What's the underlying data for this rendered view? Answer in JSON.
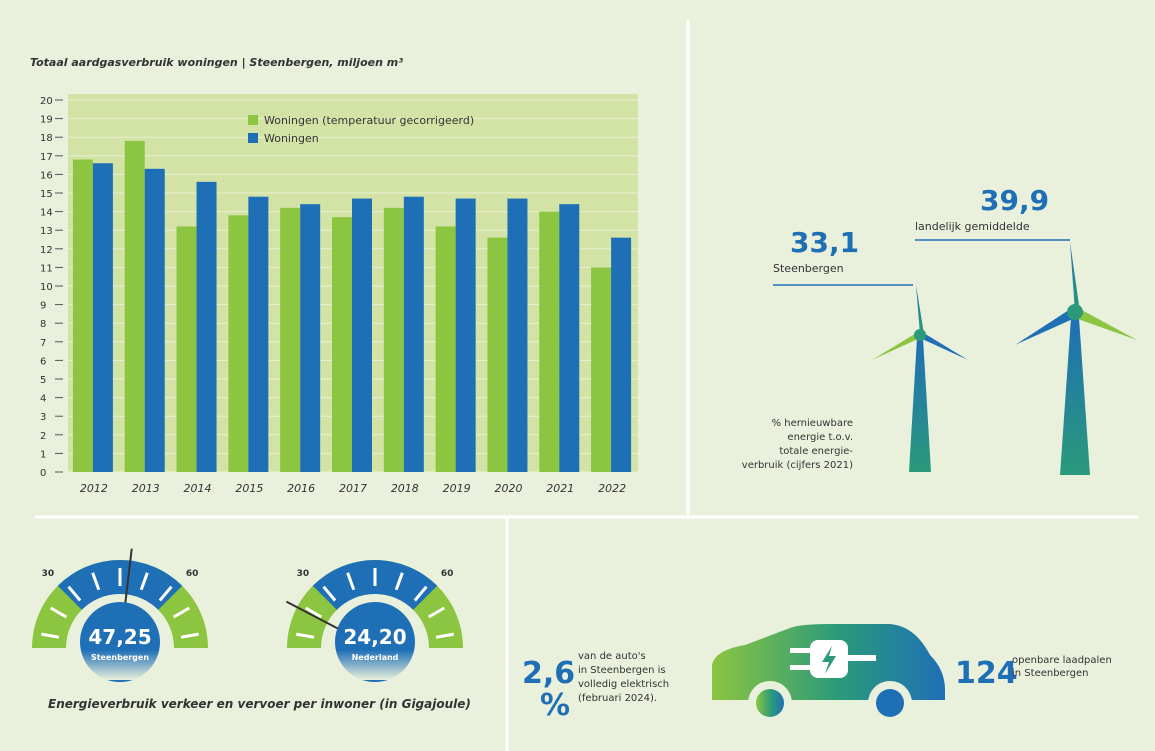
{
  "chart_data": {
    "type": "bar",
    "title": "Totaal aardgasverbruik woningen  |  Steenbergen, miljoen m³",
    "categories": [
      "2012",
      "2013",
      "2014",
      "2015",
      "2016",
      "2017",
      "2018",
      "2019",
      "2020",
      "2021",
      "2022"
    ],
    "series": [
      {
        "name": "Woningen (temperatuur gecorrigeerd)",
        "color": "#8cc540",
        "values": [
          16.8,
          17.8,
          13.2,
          13.8,
          14.2,
          13.7,
          14.2,
          13.2,
          12.6,
          14.0,
          11.0
        ]
      },
      {
        "name": "Woningen",
        "color": "#1f6fb6",
        "values": [
          16.6,
          16.3,
          15.6,
          14.8,
          14.4,
          14.7,
          14.8,
          14.7,
          14.7,
          14.4,
          12.6
        ]
      }
    ],
    "ylim": [
      0,
      20
    ],
    "yticks": [
      0,
      1,
      2,
      3,
      4,
      5,
      6,
      7,
      8,
      9,
      10,
      11,
      12,
      13,
      14,
      15,
      16,
      17,
      18,
      19,
      20
    ],
    "grid": true,
    "legend": "top-center"
  },
  "renewable": {
    "steenbergen": {
      "value_label": "33,1",
      "label": "Steenbergen"
    },
    "national": {
      "value_label": "39,9",
      "label": "landelijk gemiddelde"
    },
    "note": [
      "% hernieuwbare",
      "energie t.o.v.",
      "totale energie-",
      "verbruik (cijfers 2021)"
    ]
  },
  "gauges": {
    "caption": "Energieverbruik verkeer en vervoer per inwoner (in Gigajoule)",
    "items": [
      {
        "value": 47.25,
        "value_label": "47,25",
        "name": "Steenbergen",
        "min": 30,
        "max": 60
      },
      {
        "value": 24.2,
        "value_label": "24,20",
        "name": "Nederland",
        "min": 30,
        "max": 60
      }
    ]
  },
  "ev": {
    "share_value": "2,6",
    "share_unit": "%",
    "share_text": [
      "van de auto's",
      "in Steenbergen is",
      "volledig elektrisch",
      "(februari 2024)."
    ],
    "chargers_value": "124",
    "chargers_text": [
      "openbare laadpalen",
      "in Steenbergen"
    ]
  }
}
